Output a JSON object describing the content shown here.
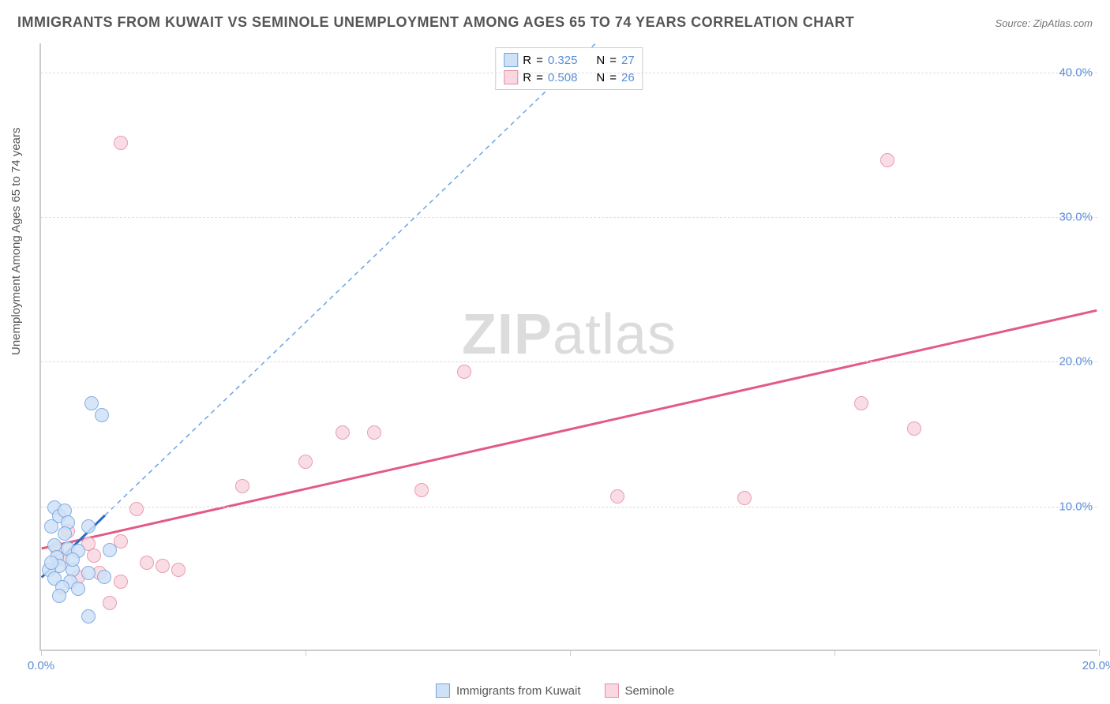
{
  "title": "IMMIGRANTS FROM KUWAIT VS SEMINOLE UNEMPLOYMENT AMONG AGES 65 TO 74 YEARS CORRELATION CHART",
  "source": "Source: ZipAtlas.com",
  "ylabel": "Unemployment Among Ages 65 to 74 years",
  "watermark_a": "ZIP",
  "watermark_b": "atlas",
  "chart": {
    "type": "scatter-correlation",
    "xlim": [
      0,
      20
    ],
    "ylim": [
      0,
      42
    ],
    "xtick_positions": [
      0,
      5,
      10,
      15,
      20
    ],
    "xtick_labels": [
      "0.0%",
      "",
      "",
      "",
      "20.0%"
    ],
    "ytick_positions": [
      10,
      20,
      30,
      40
    ],
    "ytick_labels": [
      "10.0%",
      "20.0%",
      "30.0%",
      "40.0%"
    ],
    "grid_color": "#dddddd",
    "axis_color": "#cccccc",
    "background_color": "#ffffff",
    "label_color": "#5b8dd6",
    "title_color": "#555555",
    "title_fontsize": 18,
    "label_fontsize": 15
  },
  "series": {
    "kuwait": {
      "label": "Immigrants from Kuwait",
      "R": "0.325",
      "N": "27",
      "fill": "#cfe1f6",
      "stroke": "#6fa3e0",
      "marker_radius": 9,
      "trend_solid": {
        "x1": 0,
        "y1": 5.0,
        "x2": 1.2,
        "y2": 9.3,
        "color": "#2f6bbf",
        "width": 3
      },
      "trend_dashed": {
        "x1": 1.2,
        "y1": 9.3,
        "x2": 10.5,
        "y2": 42,
        "color": "#6fa3e0",
        "width": 1.5,
        "dash": "6 5"
      },
      "points": [
        {
          "x": 0.25,
          "y": 9.8
        },
        {
          "x": 0.35,
          "y": 9.2
        },
        {
          "x": 0.45,
          "y": 9.6
        },
        {
          "x": 0.2,
          "y": 8.5
        },
        {
          "x": 0.5,
          "y": 8.8
        },
        {
          "x": 0.9,
          "y": 8.5
        },
        {
          "x": 0.25,
          "y": 7.2
        },
        {
          "x": 0.5,
          "y": 7.0
        },
        {
          "x": 0.3,
          "y": 6.4
        },
        {
          "x": 0.7,
          "y": 6.8
        },
        {
          "x": 1.3,
          "y": 6.9
        },
        {
          "x": 0.35,
          "y": 5.8
        },
        {
          "x": 0.15,
          "y": 5.5
        },
        {
          "x": 0.6,
          "y": 5.5
        },
        {
          "x": 0.9,
          "y": 5.3
        },
        {
          "x": 1.2,
          "y": 5.0
        },
        {
          "x": 0.25,
          "y": 4.9
        },
        {
          "x": 0.55,
          "y": 4.7
        },
        {
          "x": 0.4,
          "y": 4.3
        },
        {
          "x": 0.7,
          "y": 4.2
        },
        {
          "x": 0.35,
          "y": 3.7
        },
        {
          "x": 0.9,
          "y": 2.3
        },
        {
          "x": 0.95,
          "y": 17.0
        },
        {
          "x": 1.15,
          "y": 16.2
        },
        {
          "x": 0.2,
          "y": 6.0
        },
        {
          "x": 0.6,
          "y": 6.2
        },
        {
          "x": 0.45,
          "y": 8.0
        }
      ]
    },
    "seminole": {
      "label": "Seminole",
      "R": "0.508",
      "N": "26",
      "fill": "#f9d8e1",
      "stroke": "#e88aa6",
      "marker_radius": 9,
      "trend_solid": {
        "x1": 0,
        "y1": 7.0,
        "x2": 20,
        "y2": 23.5,
        "color": "#e35a86",
        "width": 3
      },
      "points": [
        {
          "x": 1.5,
          "y": 35.0
        },
        {
          "x": 16.0,
          "y": 33.8
        },
        {
          "x": 8.0,
          "y": 19.2
        },
        {
          "x": 15.5,
          "y": 17.0
        },
        {
          "x": 16.5,
          "y": 15.3
        },
        {
          "x": 5.7,
          "y": 15.0
        },
        {
          "x": 6.3,
          "y": 15.0
        },
        {
          "x": 5.0,
          "y": 13.0
        },
        {
          "x": 3.8,
          "y": 11.3
        },
        {
          "x": 10.9,
          "y": 10.6
        },
        {
          "x": 13.3,
          "y": 10.5
        },
        {
          "x": 7.2,
          "y": 11.0
        },
        {
          "x": 1.8,
          "y": 9.7
        },
        {
          "x": 0.5,
          "y": 8.2
        },
        {
          "x": 0.9,
          "y": 7.3
        },
        {
          "x": 1.5,
          "y": 7.5
        },
        {
          "x": 2.0,
          "y": 6.0
        },
        {
          "x": 2.3,
          "y": 5.8
        },
        {
          "x": 2.6,
          "y": 5.5
        },
        {
          "x": 1.1,
          "y": 5.3
        },
        {
          "x": 1.5,
          "y": 4.7
        },
        {
          "x": 1.3,
          "y": 3.2
        },
        {
          "x": 0.4,
          "y": 6.3
        },
        {
          "x": 0.7,
          "y": 5.0
        },
        {
          "x": 1.0,
          "y": 6.5
        },
        {
          "x": 0.3,
          "y": 7.0
        }
      ]
    }
  },
  "legend_top": {
    "R_label": "R",
    "N_label": "N",
    "eq": "="
  }
}
